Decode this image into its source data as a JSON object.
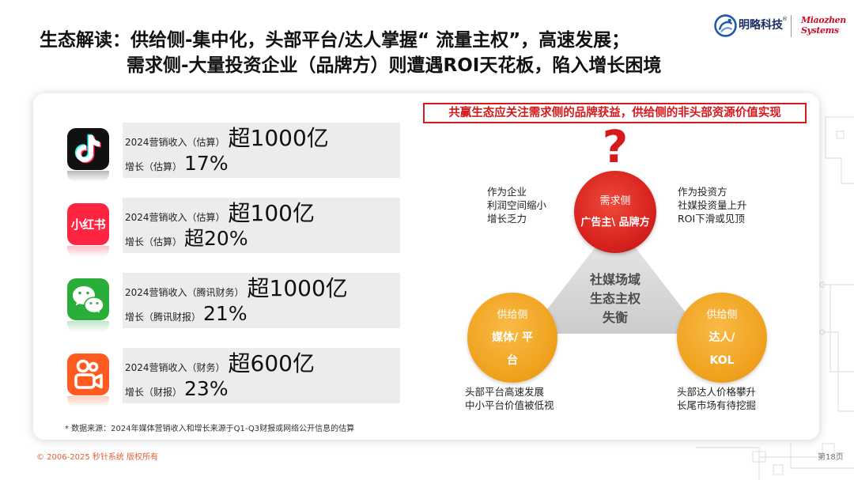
{
  "title": {
    "line1": "生态解读：供给侧-集中化，头部平台/达人掌握“ 流量主权”，高速发展；",
    "line2": "需求侧-大量投资企业（品牌方）则遭遇ROI天花板，陷入增长困境"
  },
  "logo": {
    "brand_icon": "minglue-logo-icon",
    "brand_name": "明略科技",
    "registered_mark": "®",
    "partner_line1": "Miaozhen",
    "partner_line2": "Systems"
  },
  "platforms": [
    {
      "icon": "douyin-icon",
      "color": "#111111",
      "revenue_label": "2024营销收入（估算）",
      "revenue_value": "超1000亿",
      "growth_label": "增长（估算）",
      "growth_value": "17%"
    },
    {
      "icon": "xiaohongshu-icon",
      "icon_text": "小红书",
      "color": "#ff2442",
      "revenue_label": "2024营销收入（估算）",
      "revenue_value": "超100亿",
      "growth_label": "增长（估算）",
      "growth_value": "超20%"
    },
    {
      "icon": "wechat-icon",
      "color": "#2aae3a",
      "revenue_label": "2024营销收入（腾讯财务）",
      "revenue_value": "超1000亿",
      "growth_label": "增长（腾讯财报）",
      "growth_value": "21%"
    },
    {
      "icon": "kuaishou-icon",
      "color": "#ff5a1f",
      "revenue_label": "2024营销收入（财务）",
      "revenue_value": "超600亿",
      "growth_label": "增长（财报）",
      "growth_value": "23%"
    }
  ],
  "footnote": "* 数据来源：2024年媒体营销收入和增长来源于Q1-Q3财报或网络公开信息的估算",
  "diagram": {
    "banner": "共赢生态应关注需求侧的品牌获益，供给侧的非头部资源价值实现",
    "question_mark": "?",
    "demand": {
      "label": "需求侧",
      "title": "广告主\\ 品牌方"
    },
    "supply_media": {
      "label": "供给侧",
      "title_line1": "媒体/ 平",
      "title_line2": "台"
    },
    "supply_kol": {
      "label": "供给侧",
      "title_line1": "达人/",
      "title_line2": "KOL"
    },
    "center": [
      "社媒场域",
      "生态主权",
      "失衡"
    ],
    "notes": {
      "top_left": [
        "作为企业",
        "利润空间缩小",
        "增长乏力"
      ],
      "top_right": [
        "作为投资方",
        "社媒投资量上升",
        "ROI下滑或见顶"
      ],
      "bottom_left": [
        "头部平台高速发展",
        "中小平台价值被低视"
      ],
      "bottom_right": [
        "头部达人价格攀升",
        "长尾市场有待挖掘"
      ]
    }
  },
  "footer": {
    "copyright": "© 2006-2025 秒针系统 版权所有",
    "page": "第18页"
  },
  "colors": {
    "accent_red": "#d7191c",
    "demand_circle": "#d9231f",
    "supply_circle": "#f0a21e",
    "copyright_text": "#e2603c",
    "row_bar": "#ececec"
  }
}
